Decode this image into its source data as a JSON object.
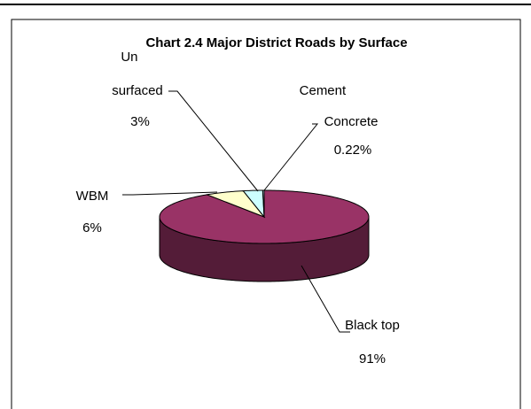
{
  "chart_data": {
    "type": "pie3d",
    "title": "Chart 2.4 Major District Roads by Surface",
    "categories": [
      "Black top",
      "WBM",
      "Un surfaced",
      "Cement Concrete"
    ],
    "values": [
      91,
      6,
      3,
      0.22
    ],
    "value_labels": [
      "91%",
      "6%",
      "3%",
      "0.22%"
    ],
    "colors": [
      "#993366",
      "#ffffcc",
      "#ccffff",
      "#ccecff"
    ]
  }
}
